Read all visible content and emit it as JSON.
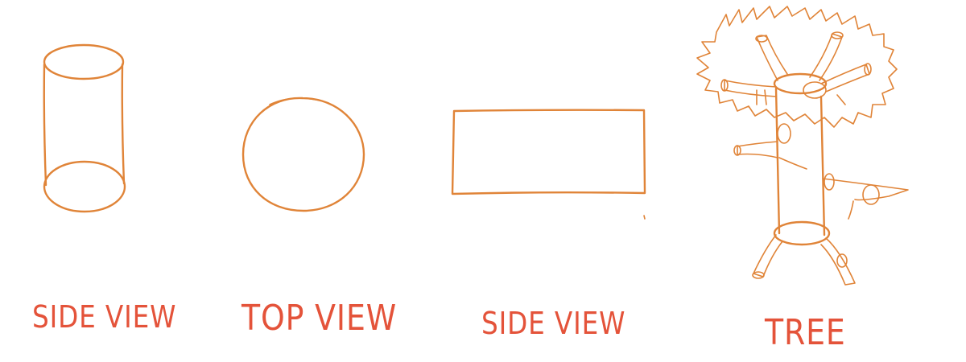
{
  "captions": {
    "cylinder": "SIDE VIEW",
    "circle": "TOP VIEW",
    "rectangle": "SIDE  VIEW",
    "tree": "TREE"
  },
  "colors": {
    "stroke": "#e08438",
    "caption": "#e4533a",
    "background": "#ffffff"
  }
}
